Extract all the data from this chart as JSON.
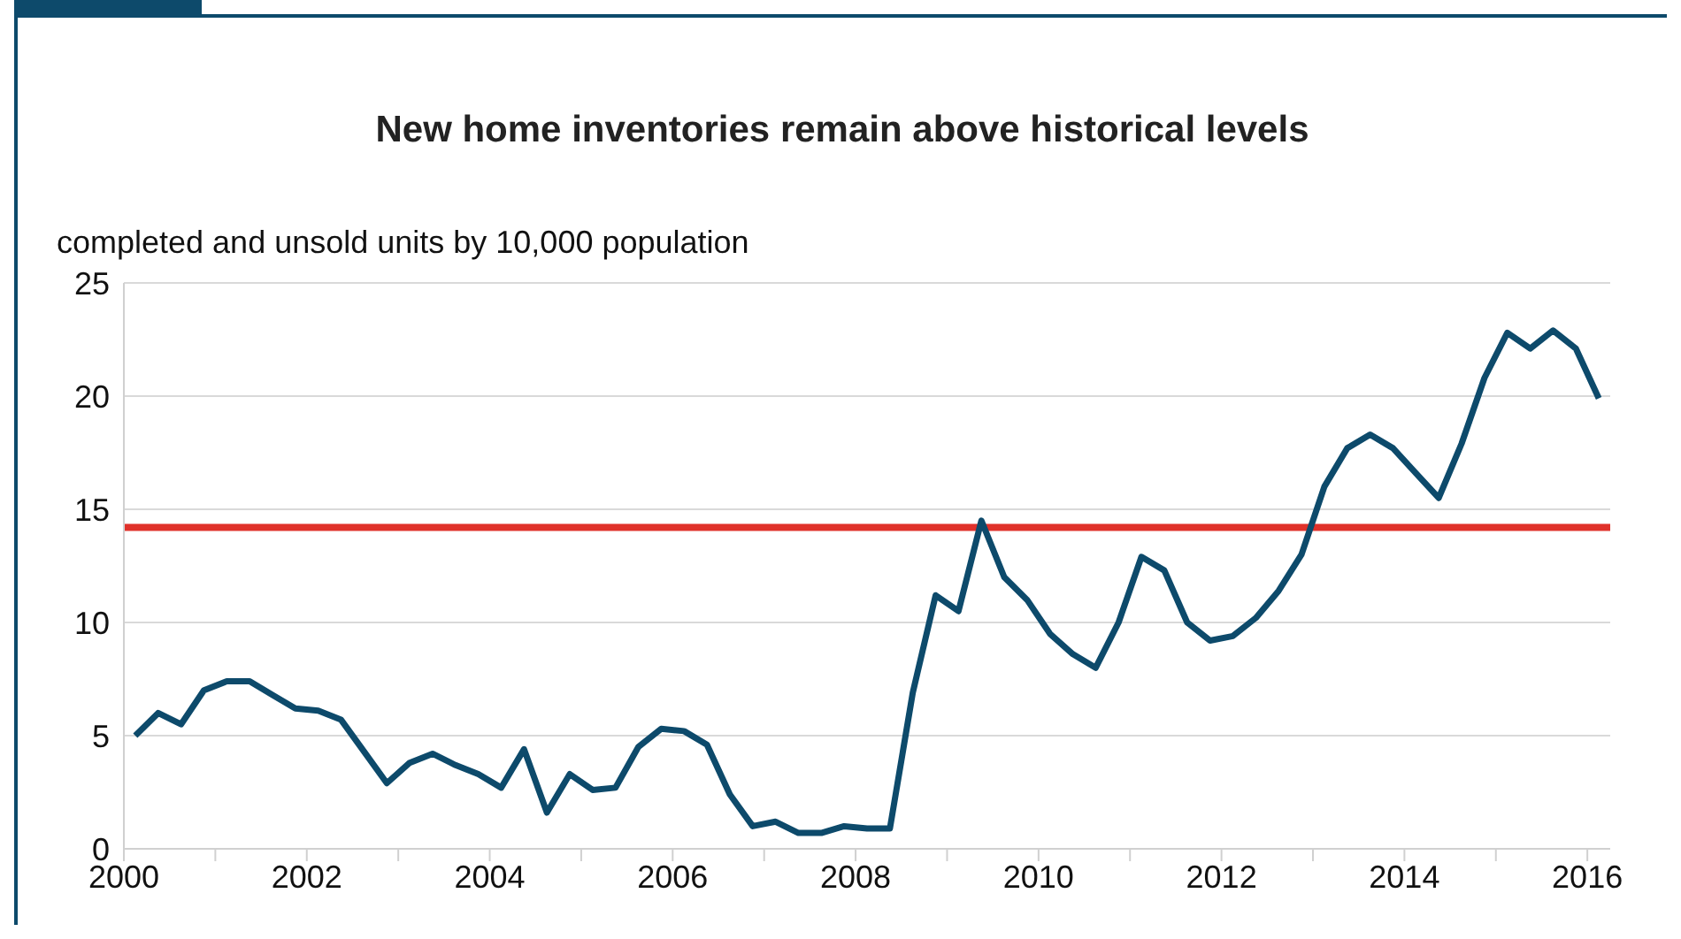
{
  "chart_data": {
    "type": "line",
    "title": "New home inventories remain above historical levels",
    "ylabel": "completed and unsold units by 10,000 population",
    "x": [
      2000.125,
      2000.375,
      2000.625,
      2000.875,
      2001.125,
      2001.375,
      2001.625,
      2001.875,
      2002.125,
      2002.375,
      2002.625,
      2002.875,
      2003.125,
      2003.375,
      2003.625,
      2003.875,
      2004.125,
      2004.375,
      2004.625,
      2004.875,
      2005.125,
      2005.375,
      2005.625,
      2005.875,
      2006.125,
      2006.375,
      2006.625,
      2006.875,
      2007.125,
      2007.375,
      2007.625,
      2007.875,
      2008.125,
      2008.375,
      2008.625,
      2008.875,
      2009.125,
      2009.375,
      2009.625,
      2009.875,
      2010.125,
      2010.375,
      2010.625,
      2010.875,
      2011.125,
      2011.375,
      2011.625,
      2011.875,
      2012.125,
      2012.375,
      2012.625,
      2012.875,
      2013.125,
      2013.375,
      2013.625,
      2013.875,
      2014.125,
      2014.375,
      2014.625,
      2014.875,
      2015.125,
      2015.375,
      2015.625,
      2015.875,
      2016.125
    ],
    "series": [
      {
        "color": "#0d4a6b",
        "values": [
          5.0,
          6.0,
          5.5,
          7.0,
          7.4,
          7.4,
          6.8,
          6.2,
          6.1,
          5.7,
          4.3,
          2.9,
          3.8,
          4.2,
          3.7,
          3.3,
          2.7,
          4.4,
          1.6,
          3.3,
          2.6,
          2.7,
          4.5,
          5.3,
          5.2,
          4.6,
          2.4,
          1.0,
          1.2,
          0.7,
          0.7,
          1.0,
          0.9,
          0.9,
          6.9,
          11.2,
          10.5,
          14.5,
          12.0,
          11.0,
          9.5,
          8.6,
          8.0,
          10.0,
          12.9,
          12.3,
          10.0,
          9.2,
          9.4,
          10.2,
          11.4,
          13.0,
          16.0,
          17.7,
          18.3,
          17.7,
          16.6,
          15.5,
          17.9,
          20.8,
          22.8,
          22.1,
          22.9,
          22.1,
          19.9
        ]
      }
    ],
    "xlim": [
      2000,
      2016.25
    ],
    "xticks": [
      2000,
      {
        "value": 2001,
        "label": null
      },
      2002,
      {
        "value": 2003,
        "label": null
      },
      2004,
      {
        "value": 2005,
        "label": null
      },
      2006,
      {
        "value": 2007,
        "label": null
      },
      2008,
      {
        "value": 2009,
        "label": null
      },
      2010,
      {
        "value": 2011,
        "label": null
      },
      2012,
      {
        "value": 2013,
        "label": null
      },
      2014,
      {
        "value": 2015,
        "label": null
      },
      2016
    ],
    "ylim": [
      0,
      25
    ],
    "yticks": [
      0,
      5,
      10,
      15,
      20,
      25
    ],
    "grid": "y",
    "legend": false,
    "marker": "none",
    "line_style": "solid",
    "ref_lines": [
      {
        "axis": "y",
        "value": 14.2,
        "color": "#e0312a"
      }
    ]
  }
}
